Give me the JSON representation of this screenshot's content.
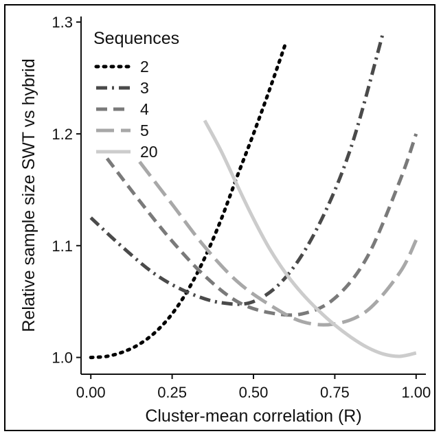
{
  "chart_data": {
    "type": "line",
    "xlabel": "Cluster-mean correlation (R)",
    "ylabel": "Relative sample size SWT vs hybrid",
    "xlim": [
      -0.03,
      1.03
    ],
    "ylim": [
      0.985,
      1.305
    ],
    "x_ticks": [
      "0.00",
      "0.25",
      "0.50",
      "0.75",
      "1.00"
    ],
    "x_tick_values": [
      0,
      0.25,
      0.5,
      0.75,
      1.0
    ],
    "y_ticks": [
      "1.0",
      "1.1",
      "1.2",
      "1.3"
    ],
    "y_tick_values": [
      1.0,
      1.1,
      1.2,
      1.3
    ],
    "grid": false,
    "legend": {
      "title": "Sequences",
      "position": "top-left"
    },
    "series": [
      {
        "name": "2",
        "color": "#000000",
        "dash": "dotted",
        "x": [
          0.0,
          0.05,
          0.1,
          0.15,
          0.2,
          0.25,
          0.3,
          0.35,
          0.4,
          0.45,
          0.5,
          0.55,
          0.6
        ],
        "y": [
          1.0,
          1.001,
          1.005,
          1.012,
          1.023,
          1.039,
          1.061,
          1.089,
          1.123,
          1.162,
          1.2,
          1.24,
          1.282
        ]
      },
      {
        "name": "3",
        "color": "#4a4a4a",
        "dash": "dotdash",
        "x": [
          0.0,
          0.1,
          0.2,
          0.3,
          0.4,
          0.5,
          0.6,
          0.7,
          0.8,
          0.9
        ],
        "y": [
          1.125,
          1.098,
          1.074,
          1.058,
          1.049,
          1.05,
          1.072,
          1.118,
          1.188,
          1.292
        ]
      },
      {
        "name": "4",
        "color": "#7a7a7a",
        "dash": "dashed",
        "x": [
          0.05,
          0.15,
          0.25,
          0.35,
          0.45,
          0.55,
          0.65,
          0.75,
          0.85,
          0.95,
          1.0
        ],
        "y": [
          1.178,
          1.14,
          1.104,
          1.073,
          1.05,
          1.04,
          1.039,
          1.053,
          1.09,
          1.158,
          1.2
        ]
      },
      {
        "name": "5",
        "color": "#a8a8a8",
        "dash": "longdash",
        "x": [
          0.15,
          0.25,
          0.35,
          0.45,
          0.55,
          0.65,
          0.75,
          0.85,
          0.95,
          1.0
        ],
        "y": [
          1.175,
          1.137,
          1.099,
          1.068,
          1.047,
          1.032,
          1.03,
          1.042,
          1.076,
          1.105
        ]
      },
      {
        "name": "20",
        "color": "#cccccc",
        "dash": "solid",
        "x": [
          0.35,
          0.4,
          0.45,
          0.5,
          0.55,
          0.6,
          0.65,
          0.7,
          0.75,
          0.8,
          0.85,
          0.9,
          0.95,
          1.0
        ],
        "y": [
          1.212,
          1.185,
          1.154,
          1.124,
          1.097,
          1.075,
          1.057,
          1.042,
          1.029,
          1.018,
          1.009,
          1.003,
          1.001,
          1.004
        ]
      }
    ]
  }
}
